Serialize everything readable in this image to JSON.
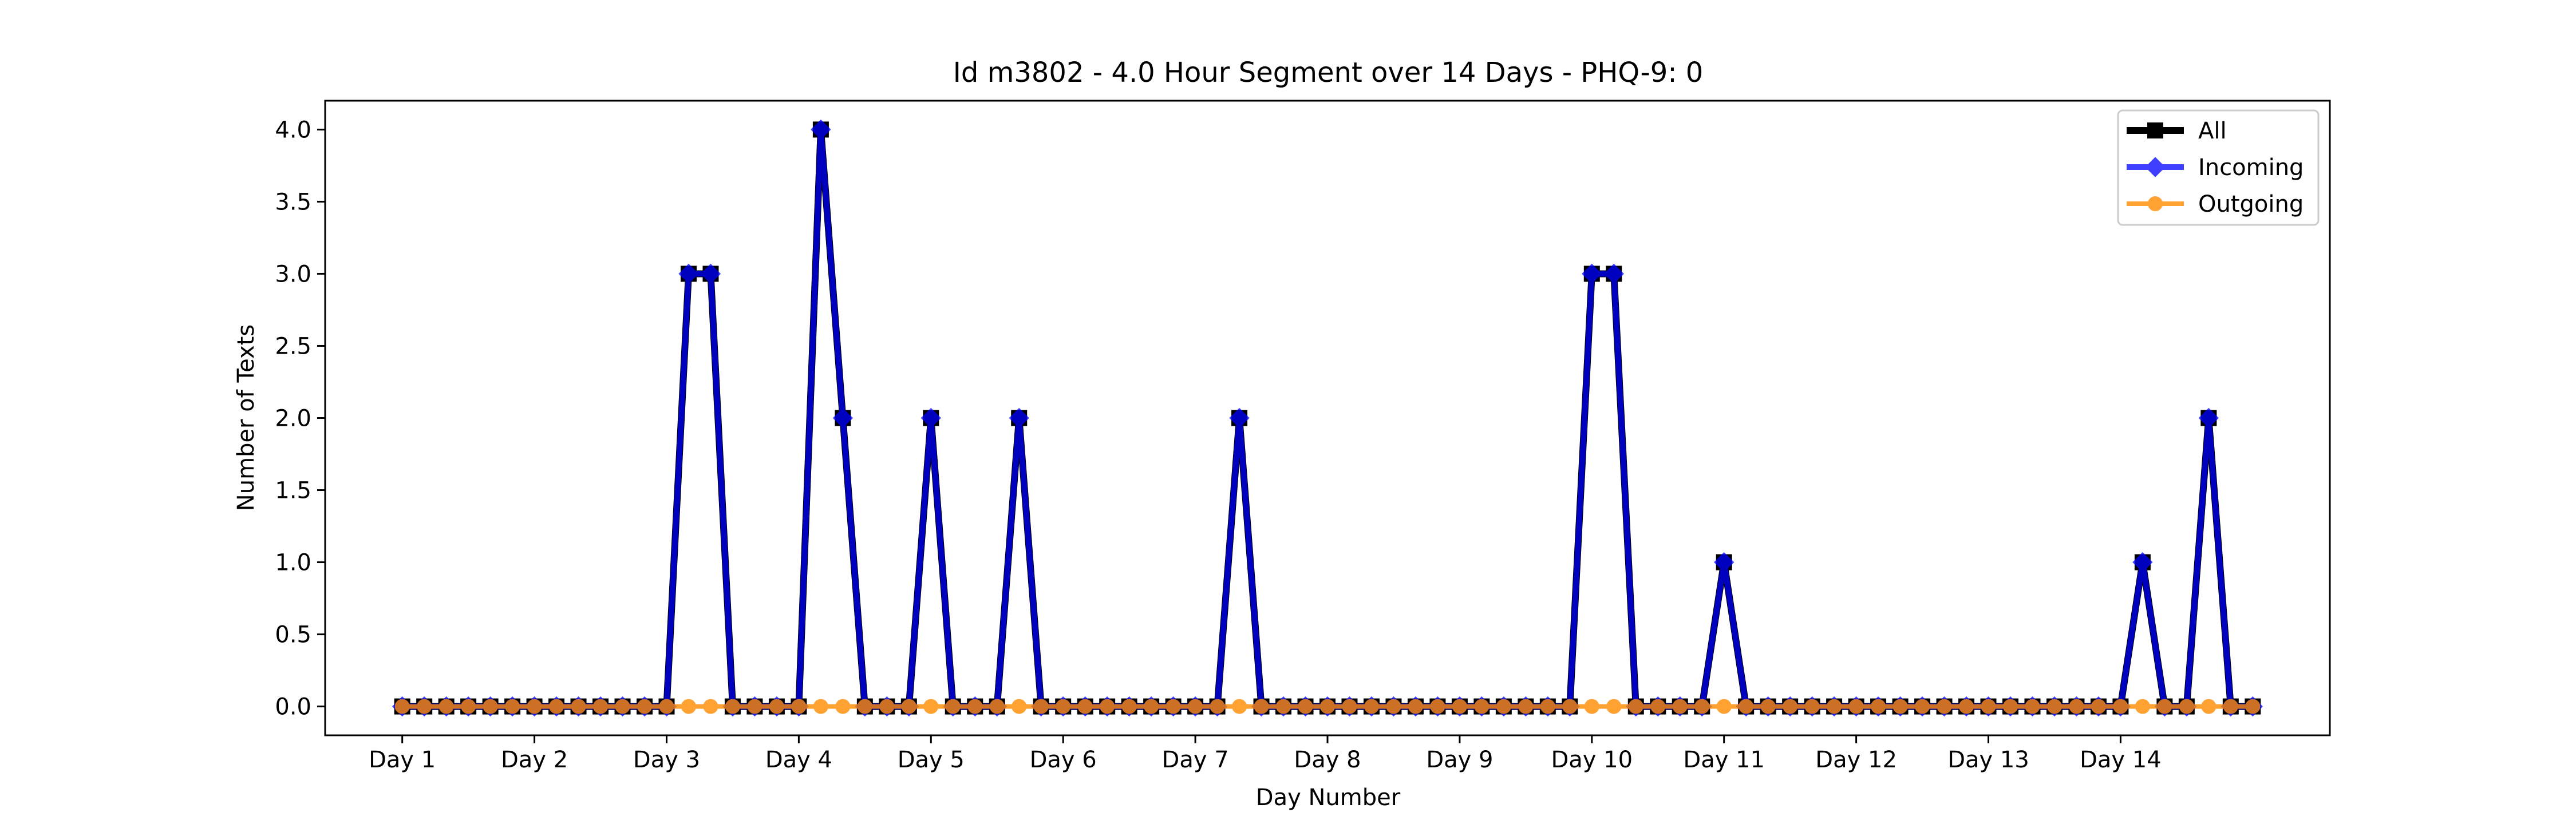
{
  "chart_data": {
    "type": "line",
    "title": "Id m3802 - 4.0 Hour Segment over 14 Days - PHQ-9: 0",
    "xlabel": "Day Number",
    "ylabel": "Number of Texts",
    "ylim": [
      -0.2,
      4.2
    ],
    "y_ticks": [
      "0.0",
      "0.5",
      "1.0",
      "1.5",
      "2.0",
      "2.5",
      "3.0",
      "3.5",
      "4.0"
    ],
    "x_ticks": [
      "Day 1",
      "Day 2",
      "Day 3",
      "Day 4",
      "Day 5",
      "Day 6",
      "Day 7",
      "Day 8",
      "Day 9",
      "Day 10",
      "Day 11",
      "Day 12",
      "Day 13",
      "Day 14"
    ],
    "segments_per_day": 6,
    "grid": false,
    "legend_position": "top-right",
    "series": [
      {
        "name": "All",
        "color": "#000000",
        "marker": "square",
        "values": [
          0,
          0,
          0,
          0,
          0,
          0,
          0,
          0,
          0,
          0,
          0,
          0,
          0,
          3,
          3,
          0,
          0,
          0,
          0,
          4,
          2,
          0,
          0,
          0,
          2,
          0,
          0,
          0,
          2,
          0,
          0,
          0,
          0,
          0,
          0,
          0,
          0,
          0,
          2,
          0,
          0,
          0,
          0,
          0,
          0,
          0,
          0,
          0,
          0,
          0,
          0,
          0,
          0,
          0,
          3,
          3,
          0,
          0,
          0,
          0,
          1,
          0,
          0,
          0,
          0,
          0,
          0,
          0,
          0,
          0,
          0,
          0,
          0,
          0,
          0,
          0,
          0,
          0,
          0,
          1,
          0,
          0,
          2,
          0,
          0
        ]
      },
      {
        "name": "Incoming",
        "color": "#0000ff",
        "marker": "diamond",
        "values": [
          0,
          0,
          0,
          0,
          0,
          0,
          0,
          0,
          0,
          0,
          0,
          0,
          0,
          3,
          3,
          0,
          0,
          0,
          0,
          4,
          2,
          0,
          0,
          0,
          2,
          0,
          0,
          0,
          2,
          0,
          0,
          0,
          0,
          0,
          0,
          0,
          0,
          0,
          2,
          0,
          0,
          0,
          0,
          0,
          0,
          0,
          0,
          0,
          0,
          0,
          0,
          0,
          0,
          0,
          3,
          3,
          0,
          0,
          0,
          0,
          1,
          0,
          0,
          0,
          0,
          0,
          0,
          0,
          0,
          0,
          0,
          0,
          0,
          0,
          0,
          0,
          0,
          0,
          0,
          1,
          0,
          0,
          2,
          0,
          0
        ]
      },
      {
        "name": "Outgoing",
        "color": "#ff8c00",
        "marker": "circle",
        "values": [
          0,
          0,
          0,
          0,
          0,
          0,
          0,
          0,
          0,
          0,
          0,
          0,
          0,
          0,
          0,
          0,
          0,
          0,
          0,
          0,
          0,
          0,
          0,
          0,
          0,
          0,
          0,
          0,
          0,
          0,
          0,
          0,
          0,
          0,
          0,
          0,
          0,
          0,
          0,
          0,
          0,
          0,
          0,
          0,
          0,
          0,
          0,
          0,
          0,
          0,
          0,
          0,
          0,
          0,
          0,
          0,
          0,
          0,
          0,
          0,
          0,
          0,
          0,
          0,
          0,
          0,
          0,
          0,
          0,
          0,
          0,
          0,
          0,
          0,
          0,
          0,
          0,
          0,
          0,
          0,
          0,
          0,
          0,
          0,
          0
        ]
      }
    ]
  }
}
